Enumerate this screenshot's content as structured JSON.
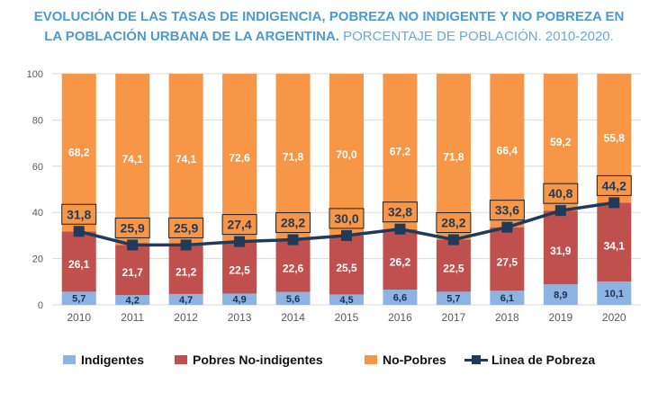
{
  "title": {
    "bold": "EVOLUCIÓN DE LAS TASAS DE INDIGENCIA, POBREZA NO INDIGENTE Y NO POBREZA EN",
    "bold2": "LA POBLACIÓN URBANA DE LA ARGENTINA.",
    "light": " PORCENTAJE DE POBLACIÓN. 2010-2020."
  },
  "legend": {
    "indigentes": "Indigentes",
    "pobres_no_indigentes": "Pobres No-indigentes",
    "no_pobres": "No-Pobres",
    "linea_pobreza": "Linea de Pobreza"
  },
  "colors": {
    "indigentes": "#8db3e2",
    "pobres_no_indigentes": "#c0504d",
    "no_pobres": "#f79646",
    "linea_pobreza": "#1f3a5a",
    "grid": "#d9d9d9"
  },
  "chart_data": {
    "type": "bar",
    "stacked": true,
    "categories": [
      "2010",
      "2011",
      "2012",
      "2013",
      "2014",
      "2015",
      "2016",
      "2017",
      "2018",
      "2019",
      "2020"
    ],
    "series": [
      {
        "name": "Indigentes",
        "values": [
          5.7,
          4.2,
          4.7,
          4.9,
          5.6,
          4.5,
          6.6,
          5.7,
          6.1,
          8.9,
          10.1
        ]
      },
      {
        "name": "Pobres No-indigentes",
        "values": [
          26.1,
          21.7,
          21.2,
          22.5,
          22.6,
          25.5,
          26.2,
          22.5,
          27.5,
          31.9,
          34.1
        ]
      },
      {
        "name": "No-Pobres",
        "values": [
          68.2,
          74.1,
          74.1,
          72.6,
          71.8,
          70.0,
          67.2,
          71.8,
          66.4,
          59.2,
          55.8
        ]
      }
    ],
    "labels": {
      "Indigentes": [
        "5,7",
        "4,2",
        "4,7",
        "4,9",
        "5,6",
        "4,5",
        "6,6",
        "5,7",
        "6,1",
        "8,9",
        "10,1"
      ],
      "Pobres No-indigentes": [
        "26,1",
        "21,7",
        "21,2",
        "22,5",
        "22,6",
        "25,5",
        "26,2",
        "22,5",
        "27,5",
        "31,9",
        "34,1"
      ],
      "No-Pobres": [
        "68,2",
        "74,1",
        "74,1",
        "72,6",
        "71,8",
        "70,0",
        "67,2",
        "71,8",
        "66,4",
        "59,2",
        "55,8"
      ]
    },
    "line": {
      "name": "Linea de Pobreza",
      "values": [
        31.8,
        25.9,
        25.9,
        27.4,
        28.2,
        30.0,
        32.8,
        28.2,
        33.6,
        40.8,
        44.2
      ],
      "labels": [
        "31,8",
        "25,9",
        "25,9",
        "27,4",
        "28,2",
        "30,0",
        "32,8",
        "28,2",
        "33,6",
        "40,8",
        "44,2"
      ]
    },
    "yticks": [
      "0",
      "20",
      "40",
      "60",
      "80",
      "100"
    ],
    "ylim": [
      0,
      100
    ],
    "grid": true,
    "legend_position": "bottom"
  }
}
